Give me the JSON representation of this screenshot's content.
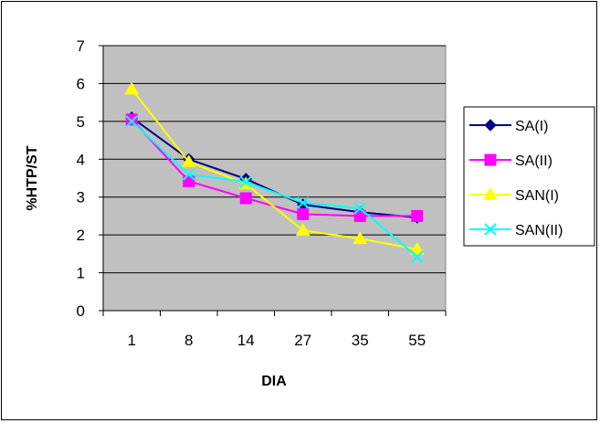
{
  "chart_data": {
    "type": "line",
    "title": "",
    "xlabel": "DIA",
    "ylabel": "%HTP/ST",
    "categories": [
      "1",
      "8",
      "14",
      "27",
      "35",
      "55"
    ],
    "ylim": [
      0,
      7
    ],
    "yticks": [
      0,
      1,
      2,
      3,
      4,
      5,
      6,
      7
    ],
    "grid": true,
    "plot_background": "#c0c0c0",
    "legend_position": "right",
    "series": [
      {
        "name": "SA(I)",
        "color": "#000080",
        "marker": "diamond",
        "values": [
          5.1,
          4.0,
          3.48,
          2.8,
          2.6,
          2.46
        ]
      },
      {
        "name": "SA(II)",
        "color": "#ff00ff",
        "marker": "square",
        "values": [
          5.05,
          3.42,
          2.97,
          2.55,
          2.5,
          2.5
        ]
      },
      {
        "name": "SAN(I)",
        "color": "#ffff00",
        "marker": "triangle",
        "values": [
          5.85,
          3.93,
          3.35,
          2.12,
          1.9,
          1.62
        ]
      },
      {
        "name": "SAN(II)",
        "color": "#00ffff",
        "marker": "x",
        "values": [
          5.0,
          3.6,
          3.4,
          2.85,
          2.7,
          1.42
        ]
      }
    ]
  }
}
